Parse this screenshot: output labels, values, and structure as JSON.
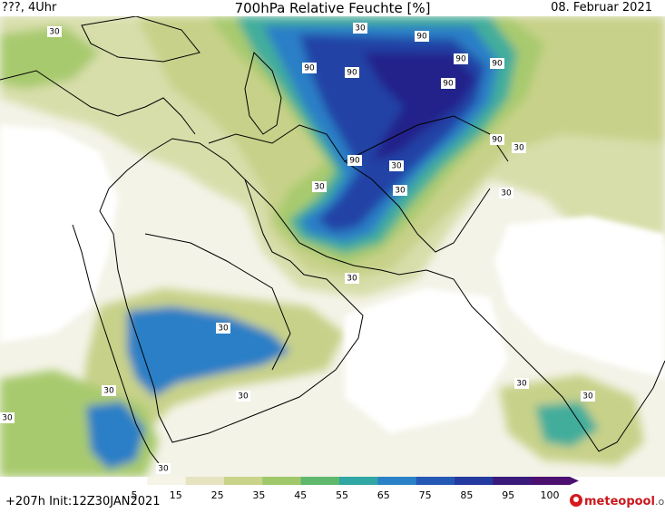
{
  "header": {
    "left": "???, 4Uhr",
    "title": "700hPa Relative Feuchte [%]",
    "date": "08. Februar 2021"
  },
  "footer": {
    "run_info": "+207h Init:12Z30JAN2021",
    "brand_name": "meteopool",
    "brand_tld": ".org"
  },
  "map": {
    "contour_labels": [
      {
        "text": "30"
      },
      {
        "text": "90"
      },
      {
        "text": "30"
      },
      {
        "text": "90"
      },
      {
        "text": "90"
      },
      {
        "text": "90"
      },
      {
        "text": "90"
      },
      {
        "text": "90"
      },
      {
        "text": "30"
      },
      {
        "text": "90"
      },
      {
        "text": "90"
      },
      {
        "text": "30"
      },
      {
        "text": "30"
      },
      {
        "text": "30"
      },
      {
        "text": "30"
      },
      {
        "text": "30"
      },
      {
        "text": "30"
      },
      {
        "text": "30"
      },
      {
        "text": "30"
      },
      {
        "text": "30"
      },
      {
        "text": "30"
      },
      {
        "text": "30"
      },
      {
        "text": "30"
      }
    ]
  },
  "colorbar": {
    "ticks": [
      "5",
      "15",
      "25",
      "35",
      "45",
      "55",
      "65",
      "75",
      "85",
      "95",
      "100"
    ],
    "colors": [
      "#ffffff",
      "#f6f4e6",
      "#e6e4c0",
      "#c9d38a",
      "#9fc86a",
      "#5fb86c",
      "#30a7a4",
      "#2a82c6",
      "#2458b5",
      "#243a9e",
      "#3a1a7a",
      "#4b1070"
    ]
  },
  "colors": {
    "very_dry": "#ffffff",
    "dry": "#f4f3e8",
    "light_green": "#d8deaa",
    "yellow_green": "#c7d189",
    "green": "#a8ca6e",
    "teal": "#43ad9b",
    "blue": "#2c7fc6",
    "dark_blue": "#2442a6",
    "indigo": "#24208a",
    "coastline": "#000000"
  }
}
